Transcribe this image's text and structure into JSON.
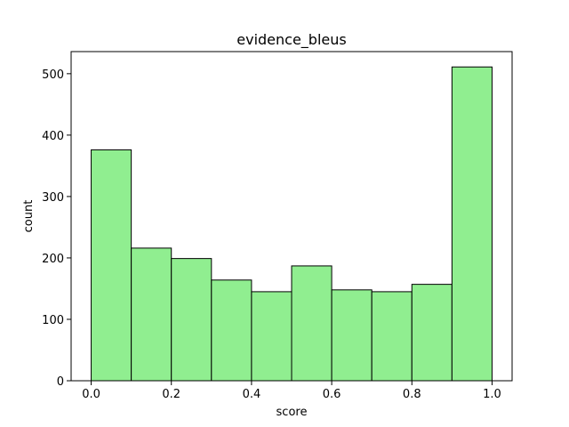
{
  "chart_data": {
    "type": "bar",
    "title": "evidence_bleus",
    "xlabel": "score",
    "ylabel": "count",
    "bin_edges": [
      0.0,
      0.1,
      0.2,
      0.3,
      0.4,
      0.5,
      0.6,
      0.7,
      0.8,
      0.9,
      1.0
    ],
    "values": [
      376,
      216,
      199,
      164,
      145,
      187,
      148,
      145,
      157,
      511
    ],
    "xlim": [
      -0.05,
      1.05
    ],
    "ylim": [
      0,
      536
    ],
    "xticks": [
      0.0,
      0.2,
      0.4,
      0.6,
      0.8,
      1.0
    ],
    "xtick_labels": [
      "0.0",
      "0.2",
      "0.4",
      "0.6",
      "0.8",
      "1.0"
    ],
    "yticks": [
      0,
      100,
      200,
      300,
      400,
      500
    ],
    "ytick_labels": [
      "0",
      "100",
      "200",
      "300",
      "400",
      "500"
    ],
    "grid": false,
    "legend": "none",
    "colors": {
      "bar_fill": "#90ee90",
      "bar_edge": "#000000",
      "axes": "#000000",
      "background": "#ffffff"
    }
  }
}
